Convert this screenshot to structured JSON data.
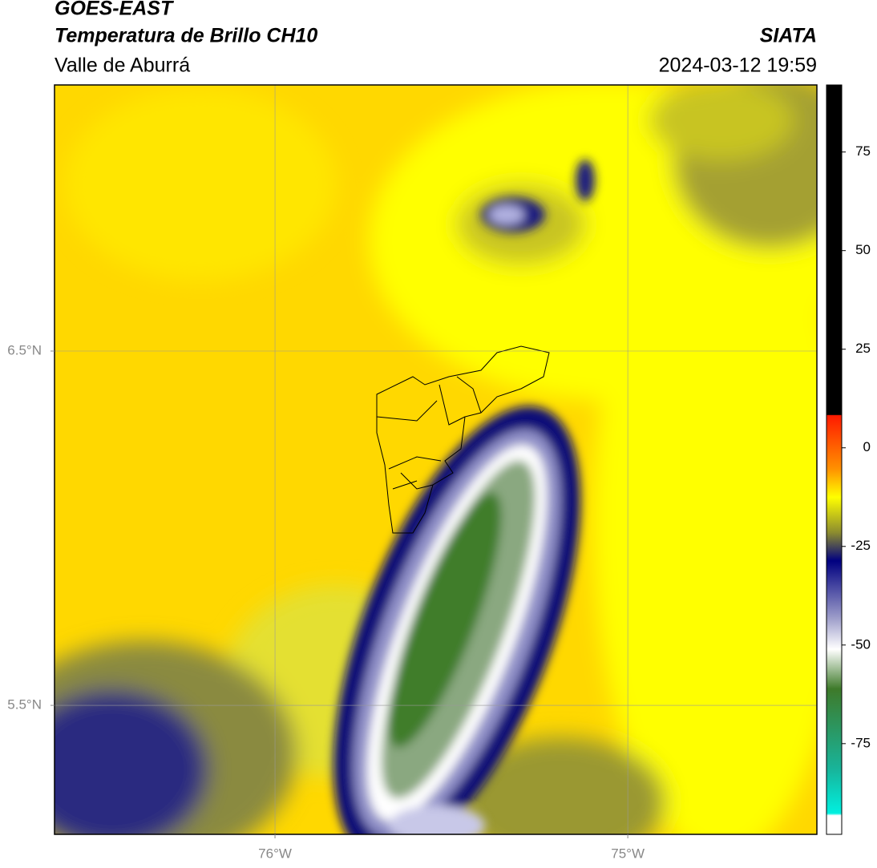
{
  "header": {
    "title": "GOES-EAST",
    "subtitle": "Temperatura de Brillo CH10",
    "region": "Valle de Aburrá",
    "source": "SIATA",
    "datetime": "2024-03-12 19:59"
  },
  "map": {
    "lonlim": [
      -76.625,
      -74.464
    ],
    "latlim": [
      5.136,
      7.251
    ],
    "lon_ticks": [
      {
        "value": -76,
        "label": "76°W"
      },
      {
        "value": -75,
        "label": "75°W"
      }
    ],
    "lat_ticks": [
      {
        "value": 6.5,
        "label": "6.5°N"
      },
      {
        "value": 5.5,
        "label": "5.5°N"
      }
    ],
    "grid": true
  },
  "colorbar": {
    "clim": [
      -98,
      92
    ],
    "ticks": [
      75,
      50,
      25,
      0,
      -25,
      -50,
      -75
    ]
  }
}
